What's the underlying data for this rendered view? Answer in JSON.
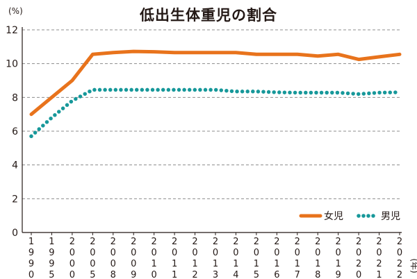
{
  "chart_data": {
    "type": "line",
    "title": "低出生体重児の割合",
    "y_unit": "(%)",
    "x_unit": "年",
    "ylim": [
      0,
      12
    ],
    "yticks": [
      0,
      2,
      4,
      6,
      8,
      10,
      12
    ],
    "grid": true,
    "legend_position": "bottom-right",
    "categories": [
      "1990",
      "1995",
      "2000",
      "2005",
      "2008",
      "2009",
      "2010",
      "2011",
      "2012",
      "2013",
      "2014",
      "2015",
      "2016",
      "2017",
      "2018",
      "2019",
      "2020",
      "2021",
      "2022"
    ],
    "series": [
      {
        "name": "女児",
        "style": "solid",
        "color": "#e8731c",
        "values": [
          7.0,
          8.0,
          9.0,
          10.55,
          10.65,
          10.72,
          10.7,
          10.65,
          10.65,
          10.65,
          10.65,
          10.55,
          10.55,
          10.55,
          10.45,
          10.55,
          10.25,
          10.4,
          10.55
        ]
      },
      {
        "name": "男児",
        "style": "dotted",
        "color": "#17989a",
        "values": [
          5.7,
          6.8,
          7.8,
          8.45,
          8.45,
          8.45,
          8.45,
          8.45,
          8.45,
          8.45,
          8.35,
          8.35,
          8.3,
          8.28,
          8.28,
          8.28,
          8.2,
          8.28,
          8.3
        ]
      }
    ]
  }
}
